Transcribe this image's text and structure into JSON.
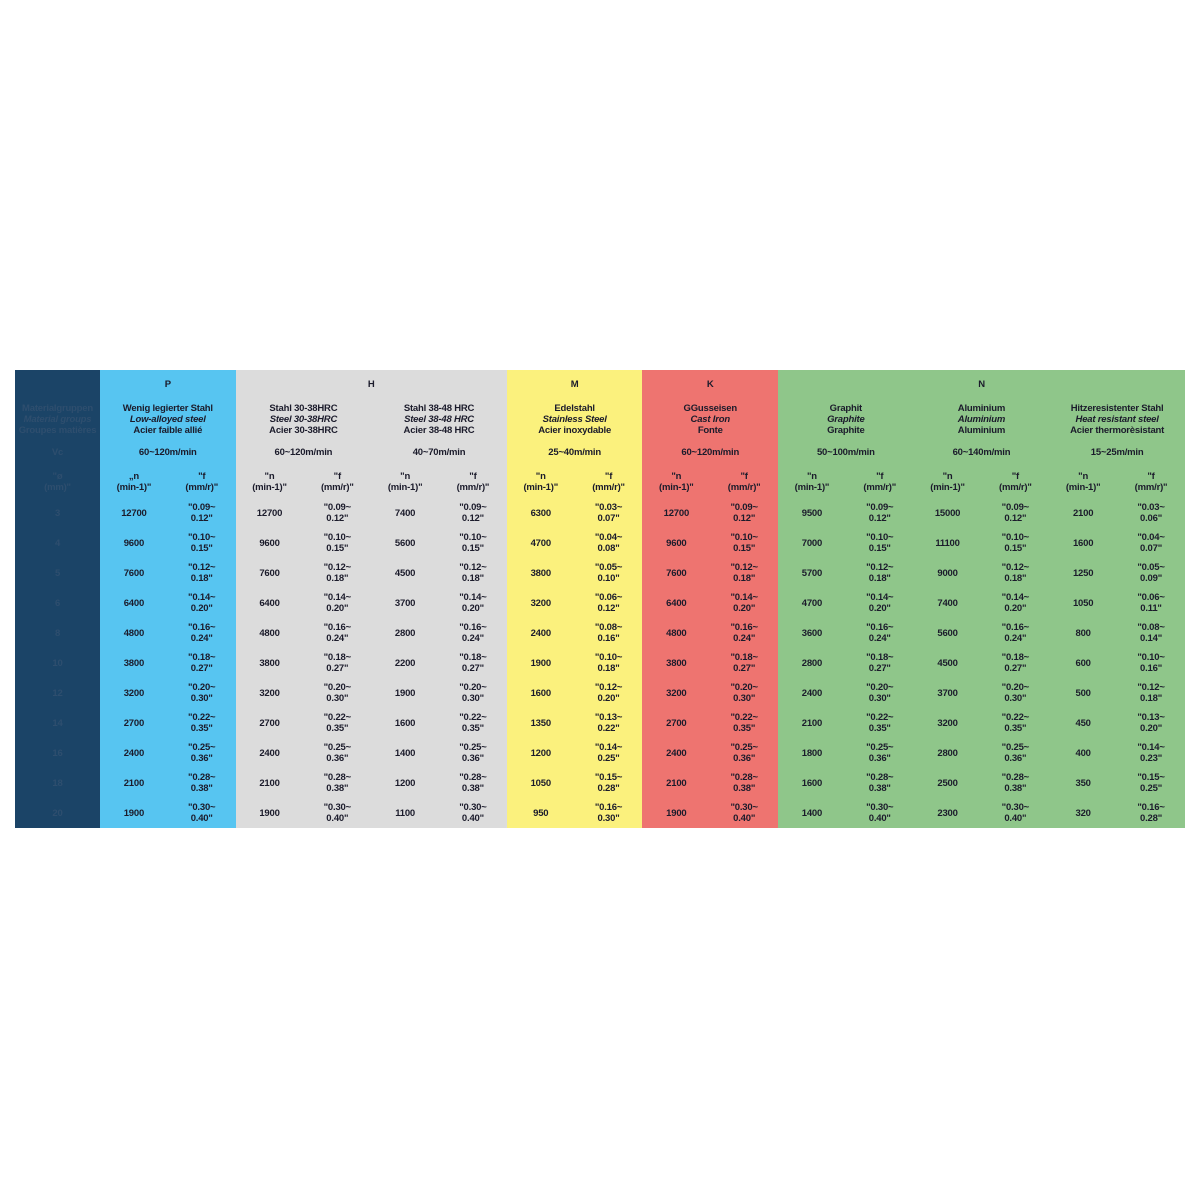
{
  "colors": {
    "first": "#1b4467",
    "P": "#57c5f1",
    "H": "#dcdcdc",
    "M": "#fbf17d",
    "K": "#ee7470",
    "N": "#8fc68a"
  },
  "first_column": {
    "label_de": "Materialgruppen",
    "label_en": "Material groups",
    "label_fr": "Groupes matières",
    "vc_label": "Vc",
    "d_label": "\"ø\n(mm)\""
  },
  "groups": [
    {
      "letter": "P",
      "span": 1,
      "color_key": "P"
    },
    {
      "letter": "H",
      "span": 2,
      "color_key": "H"
    },
    {
      "letter": "M",
      "span": 1,
      "color_key": "M"
    },
    {
      "letter": "K",
      "span": 1,
      "color_key": "K"
    },
    {
      "letter": "N",
      "span": 3,
      "color_key": "N"
    }
  ],
  "materials": [
    {
      "group": "P",
      "de": "Wenig legierter Stahl",
      "en": "Low-alloyed steel",
      "fr": "Acier faible allié",
      "vc": "60~120m/min",
      "n_header": "„n\n(min-1)\"",
      "f_header": "\"f\n(mm/r)\"",
      "n": [
        "12700",
        "9600",
        "7600",
        "6400",
        "4800",
        "3800",
        "3200",
        "2700",
        "2400",
        "2100",
        "1900"
      ],
      "f": [
        "\"0.09~\n0.12\"",
        "\"0.10~\n0.15\"",
        "\"0.12~\n0.18\"",
        "\"0.14~\n0.20\"",
        "\"0.16~\n0.24\"",
        "\"0.18~\n0.27\"",
        "\"0.20~\n0.30\"",
        "\"0.22~\n0.35\"",
        "\"0.25~\n0.36\"",
        "\"0.28~\n0.38\"",
        "\"0.30~\n0.40\""
      ]
    },
    {
      "group": "H",
      "de": "Stahl 30-38HRC",
      "en": "Steel 30-38HRC",
      "fr": "Acier 30-38HRC",
      "vc": "60~120m/min",
      "n_header": "\"n\n(min-1)\"",
      "f_header": "\"f\n(mm/r)\"",
      "n": [
        "12700",
        "9600",
        "7600",
        "6400",
        "4800",
        "3800",
        "3200",
        "2700",
        "2400",
        "2100",
        "1900"
      ],
      "f": [
        "\"0.09~\n0.12\"",
        "\"0.10~\n0.15\"",
        "\"0.12~\n0.18\"",
        "\"0.14~\n0.20\"",
        "\"0.16~\n0.24\"",
        "\"0.18~\n0.27\"",
        "\"0.20~\n0.30\"",
        "\"0.22~\n0.35\"",
        "\"0.25~\n0.36\"",
        "\"0.28~\n0.38\"",
        "\"0.30~\n0.40\""
      ]
    },
    {
      "group": "H",
      "de": "Stahl 38-48 HRC",
      "en": "Steel 38-48 HRC",
      "fr": "Acier 38-48 HRC",
      "vc": "40~70m/min",
      "n_header": "\"n\n(min-1)\"",
      "f_header": "\"f\n(mm/r)\"",
      "n": [
        "7400",
        "5600",
        "4500",
        "3700",
        "2800",
        "2200",
        "1900",
        "1600",
        "1400",
        "1200",
        "1100"
      ],
      "f": [
        "\"0.09~\n0.12\"",
        "\"0.10~\n0.15\"",
        "\"0.12~\n0.18\"",
        "\"0.14~\n0.20\"",
        "\"0.16~\n0.24\"",
        "\"0.18~\n0.27\"",
        "\"0.20~\n0.30\"",
        "\"0.22~\n0.35\"",
        "\"0.25~\n0.36\"",
        "\"0.28~\n0.38\"",
        "\"0.30~\n0.40\""
      ]
    },
    {
      "group": "M",
      "de": "Edelstahl",
      "en": "Stainless Steel",
      "fr": "Acier inoxydable",
      "vc": "25~40m/min",
      "n_header": "\"n\n(min-1)\"",
      "f_header": "\"f\n(mm/r)\"",
      "n": [
        "6300",
        "4700",
        "3800",
        "3200",
        "2400",
        "1900",
        "1600",
        "1350",
        "1200",
        "1050",
        "950"
      ],
      "f": [
        "\"0.03~\n0.07\"",
        "\"0.04~\n0.08\"",
        "\"0.05~\n0.10\"",
        "\"0.06~\n0.12\"",
        "\"0.08~\n0.16\"",
        "\"0.10~\n0.18\"",
        "\"0.12~\n0.20\"",
        "\"0.13~\n0.22\"",
        "\"0.14~\n0.25\"",
        "\"0.15~\n0.28\"",
        "\"0.16~\n0.30\""
      ]
    },
    {
      "group": "K",
      "de": "GGusseisen",
      "en": "Cast Iron",
      "fr": "Fonte",
      "vc": "60~120m/min",
      "n_header": "\"n\n(min-1)\"",
      "f_header": "\"f\n(mm/r)\"",
      "n": [
        "12700",
        "9600",
        "7600",
        "6400",
        "4800",
        "3800",
        "3200",
        "2700",
        "2400",
        "2100",
        "1900"
      ],
      "f": [
        "\"0.09~\n0.12\"",
        "\"0.10~\n0.15\"",
        "\"0.12~\n0.18\"",
        "\"0.14~\n0.20\"",
        "\"0.16~\n0.24\"",
        "\"0.18~\n0.27\"",
        "\"0.20~\n0.30\"",
        "\"0.22~\n0.35\"",
        "\"0.25~\n0.36\"",
        "\"0.28~\n0.38\"",
        "\"0.30~\n0.40\""
      ]
    },
    {
      "group": "N",
      "de": "Graphit",
      "en": "Graphite",
      "fr": "Graphite",
      "vc": "50~100m/min",
      "n_header": "\"n\n(min-1)\"",
      "f_header": "\"f\n(mm/r)\"",
      "n": [
        "9500",
        "7000",
        "5700",
        "4700",
        "3600",
        "2800",
        "2400",
        "2100",
        "1800",
        "1600",
        "1400"
      ],
      "f": [
        "\"0.09~\n0.12\"",
        "\"0.10~\n0.15\"",
        "\"0.12~\n0.18\"",
        "\"0.14~\n0.20\"",
        "\"0.16~\n0.24\"",
        "\"0.18~\n0.27\"",
        "\"0.20~\n0.30\"",
        "\"0.22~\n0.35\"",
        "\"0.25~\n0.36\"",
        "\"0.28~\n0.38\"",
        "\"0.30~\n0.40\""
      ]
    },
    {
      "group": "N",
      "de": "Aluminium",
      "en": "Aluminium",
      "fr": "Aluminium",
      "vc": "60~140m/min",
      "n_header": "\"n\n(min-1)\"",
      "f_header": "\"f\n(mm/r)\"",
      "n": [
        "15000",
        "11100",
        "9000",
        "7400",
        "5600",
        "4500",
        "3700",
        "3200",
        "2800",
        "2500",
        "2300"
      ],
      "f": [
        "\"0.09~\n0.12\"",
        "\"0.10~\n0.15\"",
        "\"0.12~\n0.18\"",
        "\"0.14~\n0.20\"",
        "\"0.16~\n0.24\"",
        "\"0.18~\n0.27\"",
        "\"0.20~\n0.30\"",
        "\"0.22~\n0.35\"",
        "\"0.25~\n0.36\"",
        "\"0.28~\n0.38\"",
        "\"0.30~\n0.40\""
      ]
    },
    {
      "group": "N",
      "de": "Hitzeresistenter Stahl",
      "en": "Heat resistant steel",
      "fr": "Acier thermorèsistant",
      "vc": "15~25m/min",
      "n_header": "\"n\n(min-1)\"",
      "f_header": "\"f\n(mm/r)\"",
      "n": [
        "2100",
        "1600",
        "1250",
        "1050",
        "800",
        "600",
        "500",
        "450",
        "400",
        "350",
        "320"
      ],
      "f": [
        "\"0.03~\n0.06\"",
        "\"0.04~\n0.07\"",
        "\"0.05~\n0.09\"",
        "\"0.06~\n0.11\"",
        "\"0.08~\n0.14\"",
        "\"0.10~\n0.16\"",
        "\"0.12~\n0.18\"",
        "\"0.13~\n0.20\"",
        "\"0.14~\n0.23\"",
        "\"0.15~\n0.25\"",
        "\"0.16~\n0.28\""
      ]
    }
  ],
  "diameters": [
    "3",
    "4",
    "5",
    "6",
    "8",
    "10",
    "12",
    "14",
    "16",
    "18",
    "20"
  ]
}
